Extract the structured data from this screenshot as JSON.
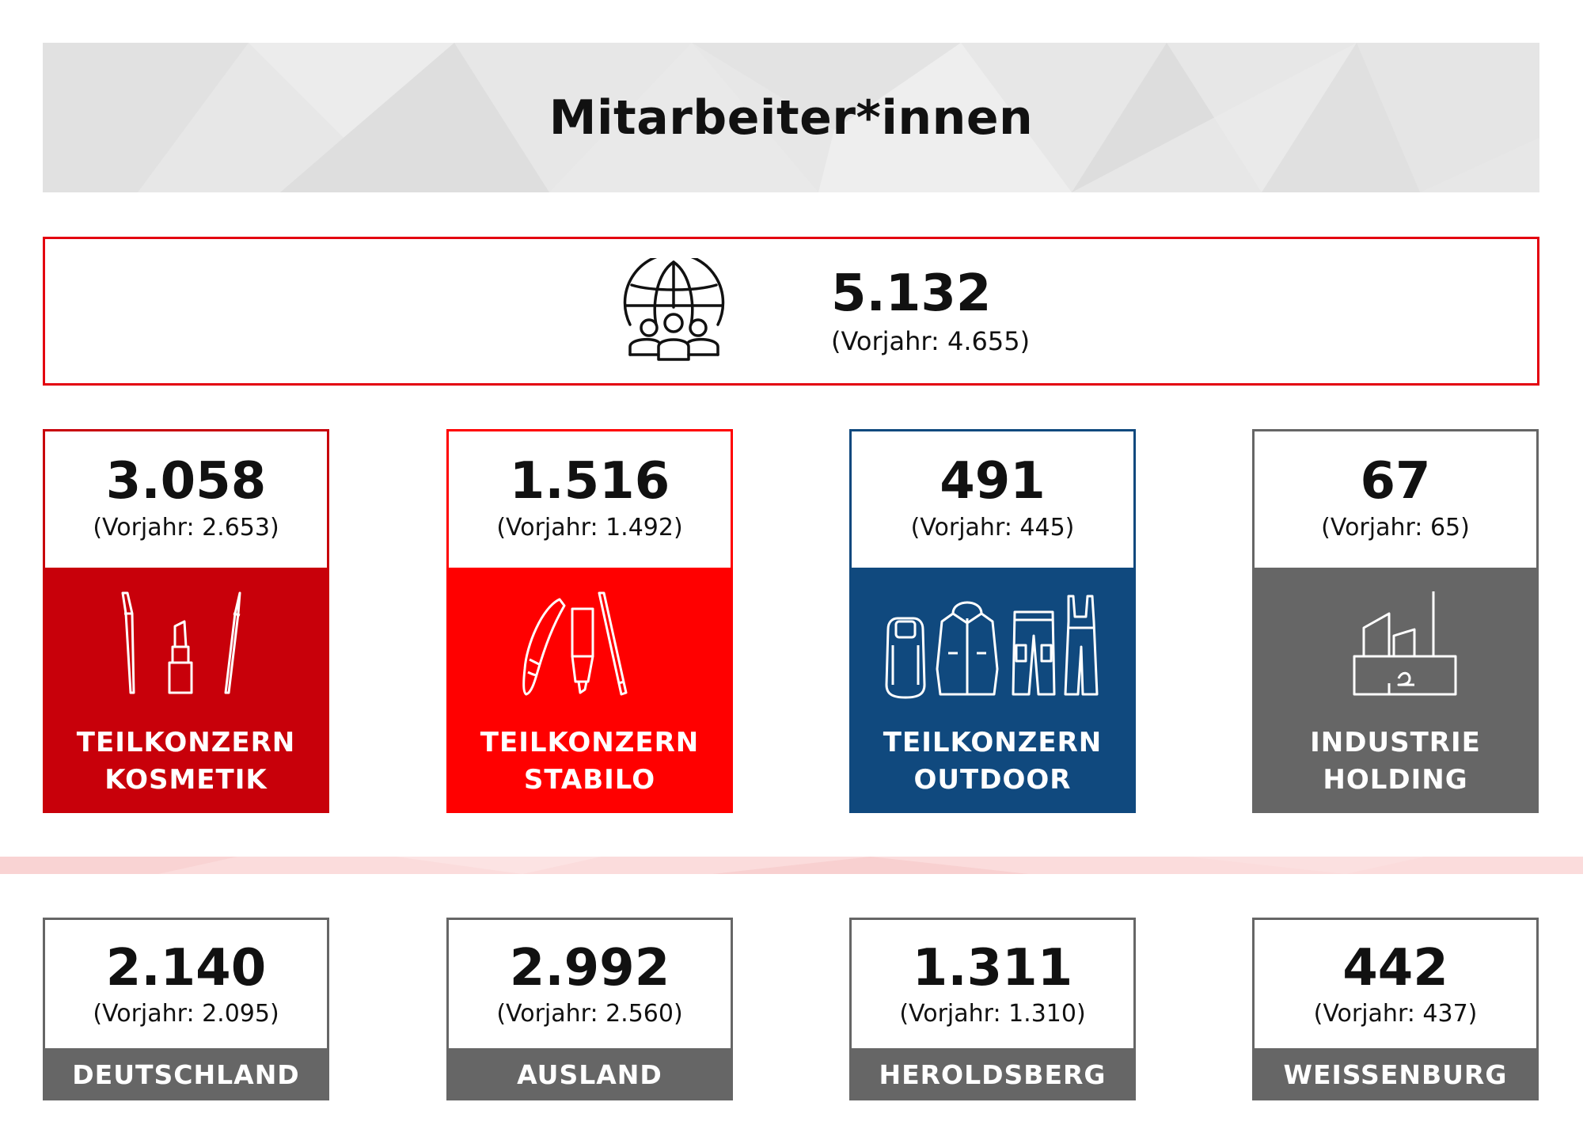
{
  "header": {
    "title": "Mitarbeiter*innen"
  },
  "total": {
    "value": "5.132",
    "previous": "(Vorjahr: 4.655)",
    "icon": "globe-people-icon"
  },
  "segments": [
    {
      "value": "3.058",
      "previous": "(Vorjahr: 2.653)",
      "label_line1": "TEILKONZERN",
      "label_line2": "KOSMETIK",
      "color": "#c8000a",
      "icon": "cosmetics-icon"
    },
    {
      "value": "1.516",
      "previous": "(Vorjahr: 1.492)",
      "label_line1": "TEILKONZERN",
      "label_line2": "STABILO",
      "color": "#ff0000",
      "icon": "pens-icon"
    },
    {
      "value": "491",
      "previous": "(Vorjahr: 445)",
      "label_line1": "TEILKONZERN",
      "label_line2": "OUTDOOR",
      "color": "#10497e",
      "icon": "outdoor-clothing-icon"
    },
    {
      "value": "67",
      "previous": "(Vorjahr: 65)",
      "label_line1": "INDUSTRIE",
      "label_line2": "HOLDING",
      "color": "#666666",
      "icon": "factory-icon"
    }
  ],
  "locations": [
    {
      "value": "2.140",
      "previous": "(Vorjahr: 2.095)",
      "label": "DEUTSCHLAND"
    },
    {
      "value": "2.992",
      "previous": "(Vorjahr: 2.560)",
      "label": "AUSLAND"
    },
    {
      "value": "1.311",
      "previous": "(Vorjahr: 1.310)",
      "label": "HEROLDSBERG"
    },
    {
      "value": "442",
      "previous": "(Vorjahr: 437)",
      "label": "WEISSENBURG"
    }
  ]
}
